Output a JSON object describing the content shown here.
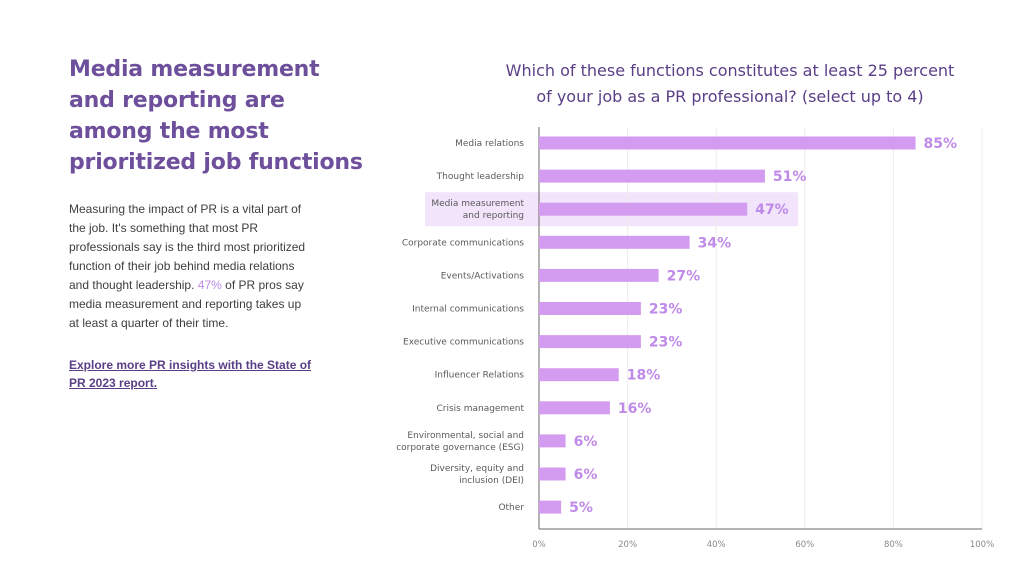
{
  "left": {
    "headline": "Media measurement and reporting are among the most prioritized job functions",
    "body_intro": "Measuring the impact of PR is a vital part of the job. It's something that most PR professionals say is the third most prioritized function of their job behind media relations and thought leadership.",
    "body_stat": "47%",
    "body_rest": "of PR pros say media measurement and reporting takes up at least a quarter of their time.",
    "link": "Explore more PR insights with the State of PR 2023 report."
  },
  "colors": {
    "heading": "#6e4f9b",
    "bar": "#d49cf0",
    "value_label": "#c08ae8",
    "highlight_band": "#f1e4fb",
    "link": "#5a3f86"
  },
  "chart_data": {
    "type": "bar",
    "orientation": "horizontal",
    "title_lines": [
      "Which of these functions constitutes at least 25 percent",
      "of your job as a PR professional? (select up to 4)"
    ],
    "categories": [
      [
        "Media relations"
      ],
      [
        "Thought leadership"
      ],
      [
        "Media measurement",
        "and reporting"
      ],
      [
        "Corporate communications"
      ],
      [
        "Events/Activations"
      ],
      [
        "Internal communications"
      ],
      [
        "Executive communications"
      ],
      [
        "Influencer Relations"
      ],
      [
        "Crisis management"
      ],
      [
        "Environmental, social and",
        "corporate governance (ESG)"
      ],
      [
        "Diversity, equity and",
        "inclusion (DEI)"
      ],
      [
        "Other"
      ]
    ],
    "values": [
      85,
      51,
      47,
      34,
      27,
      23,
      23,
      18,
      16,
      6,
      6,
      5
    ],
    "value_labels": [
      "85%",
      "51%",
      "47%",
      "34%",
      "27%",
      "23%",
      "23%",
      "18%",
      "16%",
      "6%",
      "6%",
      "5%"
    ],
    "highlight_index": 2,
    "x_ticks": [
      0,
      20,
      40,
      60,
      80,
      100
    ],
    "x_tick_labels": [
      "0%",
      "20%",
      "40%",
      "60%",
      "80%",
      "100%"
    ],
    "xlim": [
      0,
      100
    ],
    "grid": true
  }
}
